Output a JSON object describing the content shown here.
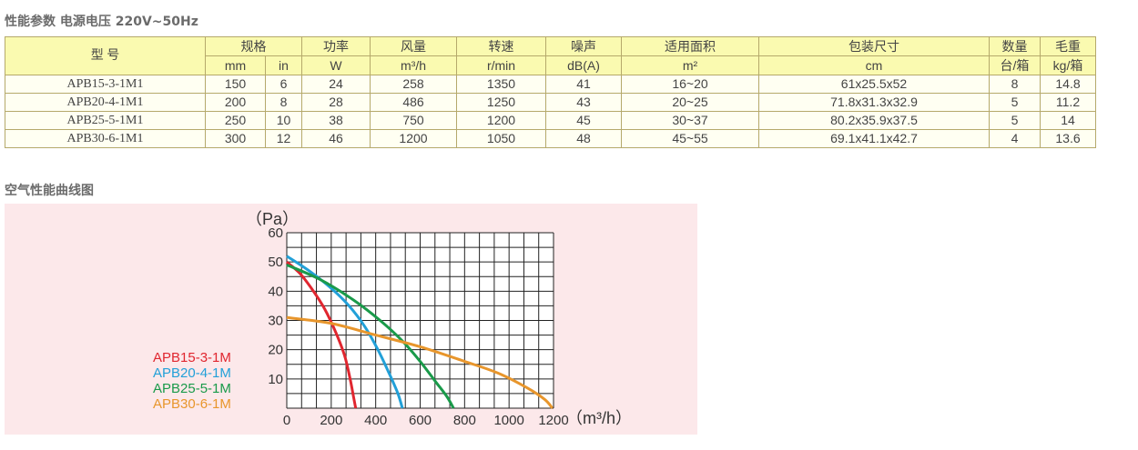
{
  "specs_title": "性能参数 电源电压  220V~50Hz",
  "curve_title": "空气性能曲线图",
  "table": {
    "model_header": "型 号",
    "headers": [
      {
        "label": "规格",
        "unit": [
          "mm",
          "in"
        ]
      },
      {
        "label": "功率",
        "unit": [
          "W"
        ]
      },
      {
        "label": "风量",
        "unit": [
          "m³/h"
        ]
      },
      {
        "label": "转速",
        "unit": [
          "r/min"
        ]
      },
      {
        "label": "噪声",
        "unit": [
          "dB(A)"
        ]
      },
      {
        "label": "适用面积",
        "unit": [
          "m²"
        ]
      },
      {
        "label": "包装尺寸",
        "unit": [
          "cm"
        ]
      },
      {
        "label": "数量",
        "unit": [
          "台/箱"
        ]
      },
      {
        "label": "毛重",
        "unit": [
          "kg/箱"
        ]
      }
    ],
    "rows": [
      [
        "APB15-3-1M1",
        "150",
        "6",
        "24",
        "258",
        "1350",
        "41",
        "16~20",
        "61x25.5x52",
        "8",
        "14.8"
      ],
      [
        "APB20-4-1M1",
        "200",
        "8",
        "28",
        "486",
        "1250",
        "43",
        "20~25",
        "71.8x31.3x32.9",
        "5",
        "11.2"
      ],
      [
        "APB25-5-1M1",
        "250",
        "10",
        "38",
        "750",
        "1200",
        "45",
        "30~37",
        "80.2x35.9x37.5",
        "5",
        "14"
      ],
      [
        "APB30-6-1M1",
        "300",
        "12",
        "46",
        "1200",
        "1050",
        "48",
        "45~55",
        "69.1x41.1x42.7",
        "4",
        "13.6"
      ]
    ]
  },
  "chart_data": {
    "type": "line",
    "title": "",
    "xlabel": "（m³/h）",
    "ylabel": "（Pa）",
    "xlim": [
      0,
      1200
    ],
    "ylim": [
      0,
      60
    ],
    "x_ticks": [
      "0",
      "200",
      "400",
      "600",
      "800",
      "1000",
      "1200"
    ],
    "x_tick_values": [
      0,
      200,
      400,
      600,
      800,
      1000,
      1200
    ],
    "y_ticks": [
      "10",
      "20",
      "30",
      "40",
      "50",
      "60"
    ],
    "y_tick_values": [
      10,
      20,
      30,
      40,
      50,
      60
    ],
    "grid": true,
    "legend_position": "left",
    "series": [
      {
        "name": "APB15-3-1M",
        "color": "#e0262f",
        "x": [
          0,
          60,
          120,
          170,
          220,
          260,
          285,
          300,
          310
        ],
        "y": [
          50,
          46,
          40,
          34,
          26,
          18,
          10,
          4,
          0
        ]
      },
      {
        "name": "APB20-4-1M",
        "color": "#22a0d8",
        "x": [
          0,
          100,
          200,
          280,
          350,
          410,
          460,
          500,
          520
        ],
        "y": [
          52,
          47,
          41,
          35,
          28,
          20,
          12,
          5,
          0
        ]
      },
      {
        "name": "APB25-5-1M",
        "color": "#1a9a4a",
        "x": [
          0,
          150,
          300,
          420,
          520,
          600,
          670,
          720,
          750
        ],
        "y": [
          49,
          44,
          37,
          30,
          23,
          16,
          9,
          4,
          0
        ]
      },
      {
        "name": "APB30-6-1M",
        "color": "#e8962c",
        "x": [
          0,
          200,
          400,
          600,
          800,
          950,
          1080,
          1160,
          1195
        ],
        "y": [
          31,
          29,
          25,
          21,
          16,
          12,
          7,
          3,
          0
        ]
      }
    ]
  }
}
